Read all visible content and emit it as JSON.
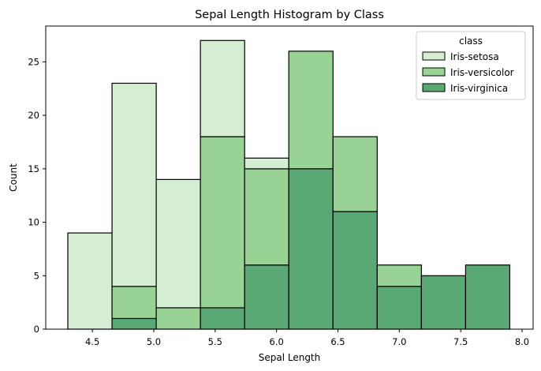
{
  "chart_data": {
    "type": "bar",
    "stacked": true,
    "title": "Sepal Length Histogram by Class",
    "xlabel": "Sepal Length",
    "ylabel": "Count",
    "xlim": [
      4.12,
      8.09
    ],
    "ylim": [
      0,
      28.35
    ],
    "xticks": [
      "4.5",
      "5.0",
      "5.5",
      "6.0",
      "6.5",
      "7.0",
      "7.5",
      "8.0"
    ],
    "xtick_values": [
      4.5,
      5.0,
      5.5,
      6.0,
      6.5,
      7.0,
      7.5,
      8.0
    ],
    "yticks": [
      "0",
      "5",
      "10",
      "15",
      "20",
      "25"
    ],
    "ytick_values": [
      0,
      5,
      10,
      15,
      20,
      25
    ],
    "bin_edges": [
      4.3,
      4.66,
      5.02,
      5.38,
      5.74,
      6.1,
      6.46,
      6.82,
      7.18,
      7.54,
      7.9
    ],
    "series": [
      {
        "name": "Iris-setosa",
        "color": "#d5edd2",
        "values": [
          9,
          19,
          12,
          9,
          1,
          0,
          0,
          0,
          0,
          0
        ]
      },
      {
        "name": "Iris-versicolor",
        "color": "#98d295",
        "values": [
          0,
          3,
          2,
          16,
          9,
          11,
          7,
          2,
          0,
          0
        ]
      },
      {
        "name": "Iris-virginica",
        "color": "#5aa974",
        "values": [
          0,
          1,
          0,
          2,
          6,
          15,
          11,
          4,
          5,
          6
        ]
      }
    ],
    "stack_order": [
      "Iris-virginica",
      "Iris-versicolor",
      "Iris-setosa"
    ],
    "legend": {
      "title": "class",
      "placement": "top-right"
    },
    "grid": false
  }
}
